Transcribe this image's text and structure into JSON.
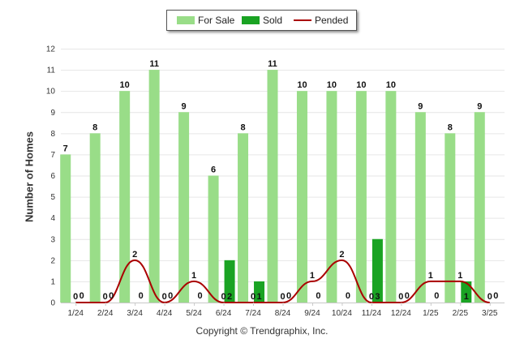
{
  "chart_data": {
    "type": "bar",
    "title": "",
    "xlabel": "",
    "ylabel": "Number of Homes",
    "ylim": [
      0,
      12
    ],
    "yticks": [
      0,
      1,
      2,
      3,
      4,
      5,
      6,
      7,
      8,
      9,
      10,
      11,
      12
    ],
    "grid": true,
    "legend_position": "top-center",
    "categories": [
      "1/24",
      "2/24",
      "3/24",
      "4/24",
      "5/24",
      "6/24",
      "7/24",
      "8/24",
      "9/24",
      "10/24",
      "11/24",
      "12/24",
      "1/25",
      "2/25",
      "3/25"
    ],
    "series": [
      {
        "name": "For Sale",
        "type": "bar",
        "color": "#99dd88",
        "values": [
          7,
          8,
          10,
          11,
          9,
          6,
          8,
          11,
          10,
          10,
          10,
          10,
          9,
          8,
          9
        ]
      },
      {
        "name": "Sold",
        "type": "bar",
        "color": "#1aa323",
        "values": [
          0,
          0,
          0,
          0,
          0,
          2,
          1,
          0,
          0,
          0,
          3,
          0,
          0,
          1,
          0
        ]
      },
      {
        "name": "Pended",
        "type": "line",
        "color": "#aa0000",
        "values": [
          0,
          0,
          2,
          0,
          1,
          0,
          0,
          0,
          1,
          2,
          0,
          0,
          1,
          1,
          0
        ]
      }
    ]
  },
  "credit": "Copyright © Trendgraphix, Inc."
}
